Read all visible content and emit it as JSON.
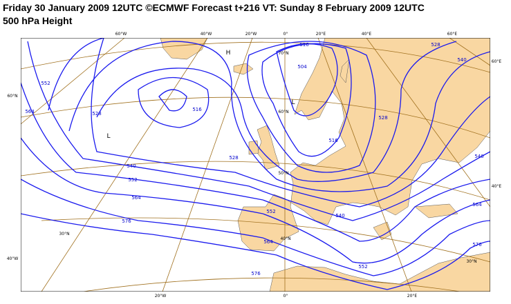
{
  "header": {
    "title": "Friday 30 January 2009 12UTC ©ECMWF Forecast t+216 VT: Sunday 8 February 2009 12UTC",
    "subtitle": "500 hPa Height"
  },
  "graticule_labels": [
    "60°W",
    "40°W",
    "20°W",
    "0°",
    "20°E",
    "40°E",
    "60°E",
    "60°N",
    "40°W",
    "60°E",
    "40°E",
    "20°W",
    "0°",
    "20°E",
    "70°N",
    "60°N",
    "50°N",
    "40°N",
    "30°N",
    "30°N"
  ],
  "contour_labels": [
    "516",
    "528",
    "540",
    "504",
    "516",
    "528",
    "552",
    "564",
    "540",
    "552",
    "564",
    "576",
    "528",
    "540",
    "552",
    "564",
    "576",
    "552",
    "540",
    "564",
    "576",
    "528",
    "516"
  ],
  "pressure_centres": [
    "H",
    "L",
    "L"
  ]
}
